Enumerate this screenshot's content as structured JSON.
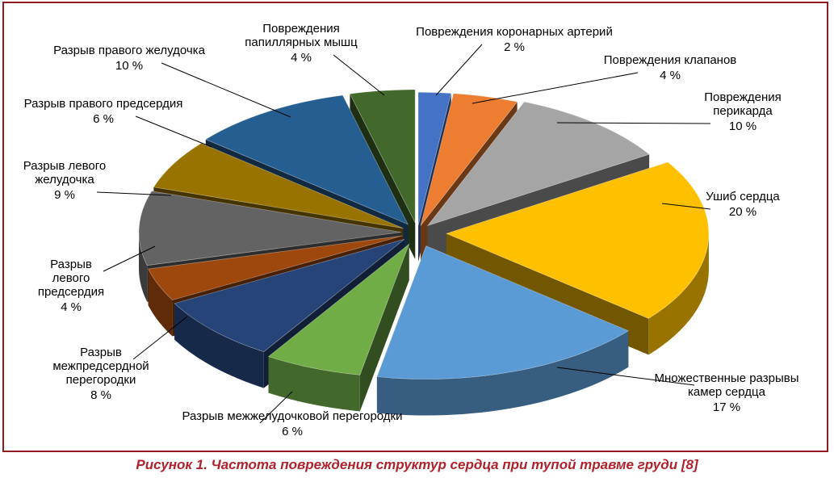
{
  "caption": "Рисунок 1.  Частота повреждения структур сердца при тупой травме груди [8]",
  "chart_data": {
    "type": "pie",
    "style": "3d-exploded",
    "title": "",
    "legend": "none",
    "slices": [
      {
        "label": [
          "Повреждения коронарных артерий"
        ],
        "pct": "2 %",
        "value": 2,
        "color": "#4472c4"
      },
      {
        "label": [
          "Повреждения клапанов"
        ],
        "pct": "4 %",
        "value": 4,
        "color": "#ed7d31"
      },
      {
        "label": [
          "Повреждения",
          "перикарда"
        ],
        "pct": "10 %",
        "value": 10,
        "color": "#a5a5a5"
      },
      {
        "label": [
          "Ушиб сердца"
        ],
        "pct": "20 %",
        "value": 20,
        "color": "#ffc000"
      },
      {
        "label": [
          "Множественные разрывы",
          "камер сердца"
        ],
        "pct": "17 %",
        "value": 17,
        "color": "#5b9bd5"
      },
      {
        "label": [
          "Разрыв межжелудочковой перегородки"
        ],
        "pct": "6 %",
        "value": 6,
        "color": "#70ad47"
      },
      {
        "label": [
          "Разрыв",
          "межпредсердной",
          "перегородки"
        ],
        "pct": "8 %",
        "value": 8,
        "color": "#264478"
      },
      {
        "label": [
          "Разрыв",
          "левого",
          "предсердия"
        ],
        "pct": "4 %",
        "value": 4,
        "color": "#9e480e"
      },
      {
        "label": [
          "Разрыв левого",
          "желудочка"
        ],
        "pct": "9 %",
        "value": 9,
        "color": "#636363"
      },
      {
        "label": [
          "Разрыв правого предсердия"
        ],
        "pct": "6 %",
        "value": 6,
        "color": "#997300"
      },
      {
        "label": [
          "Разрыв правого желудочка"
        ],
        "pct": "10 %",
        "value": 10,
        "color": "#255e91"
      },
      {
        "label": [
          "Повреждения",
          "папиллярных мышц"
        ],
        "pct": "4 %",
        "value": 4,
        "color": "#43682b"
      }
    ]
  }
}
